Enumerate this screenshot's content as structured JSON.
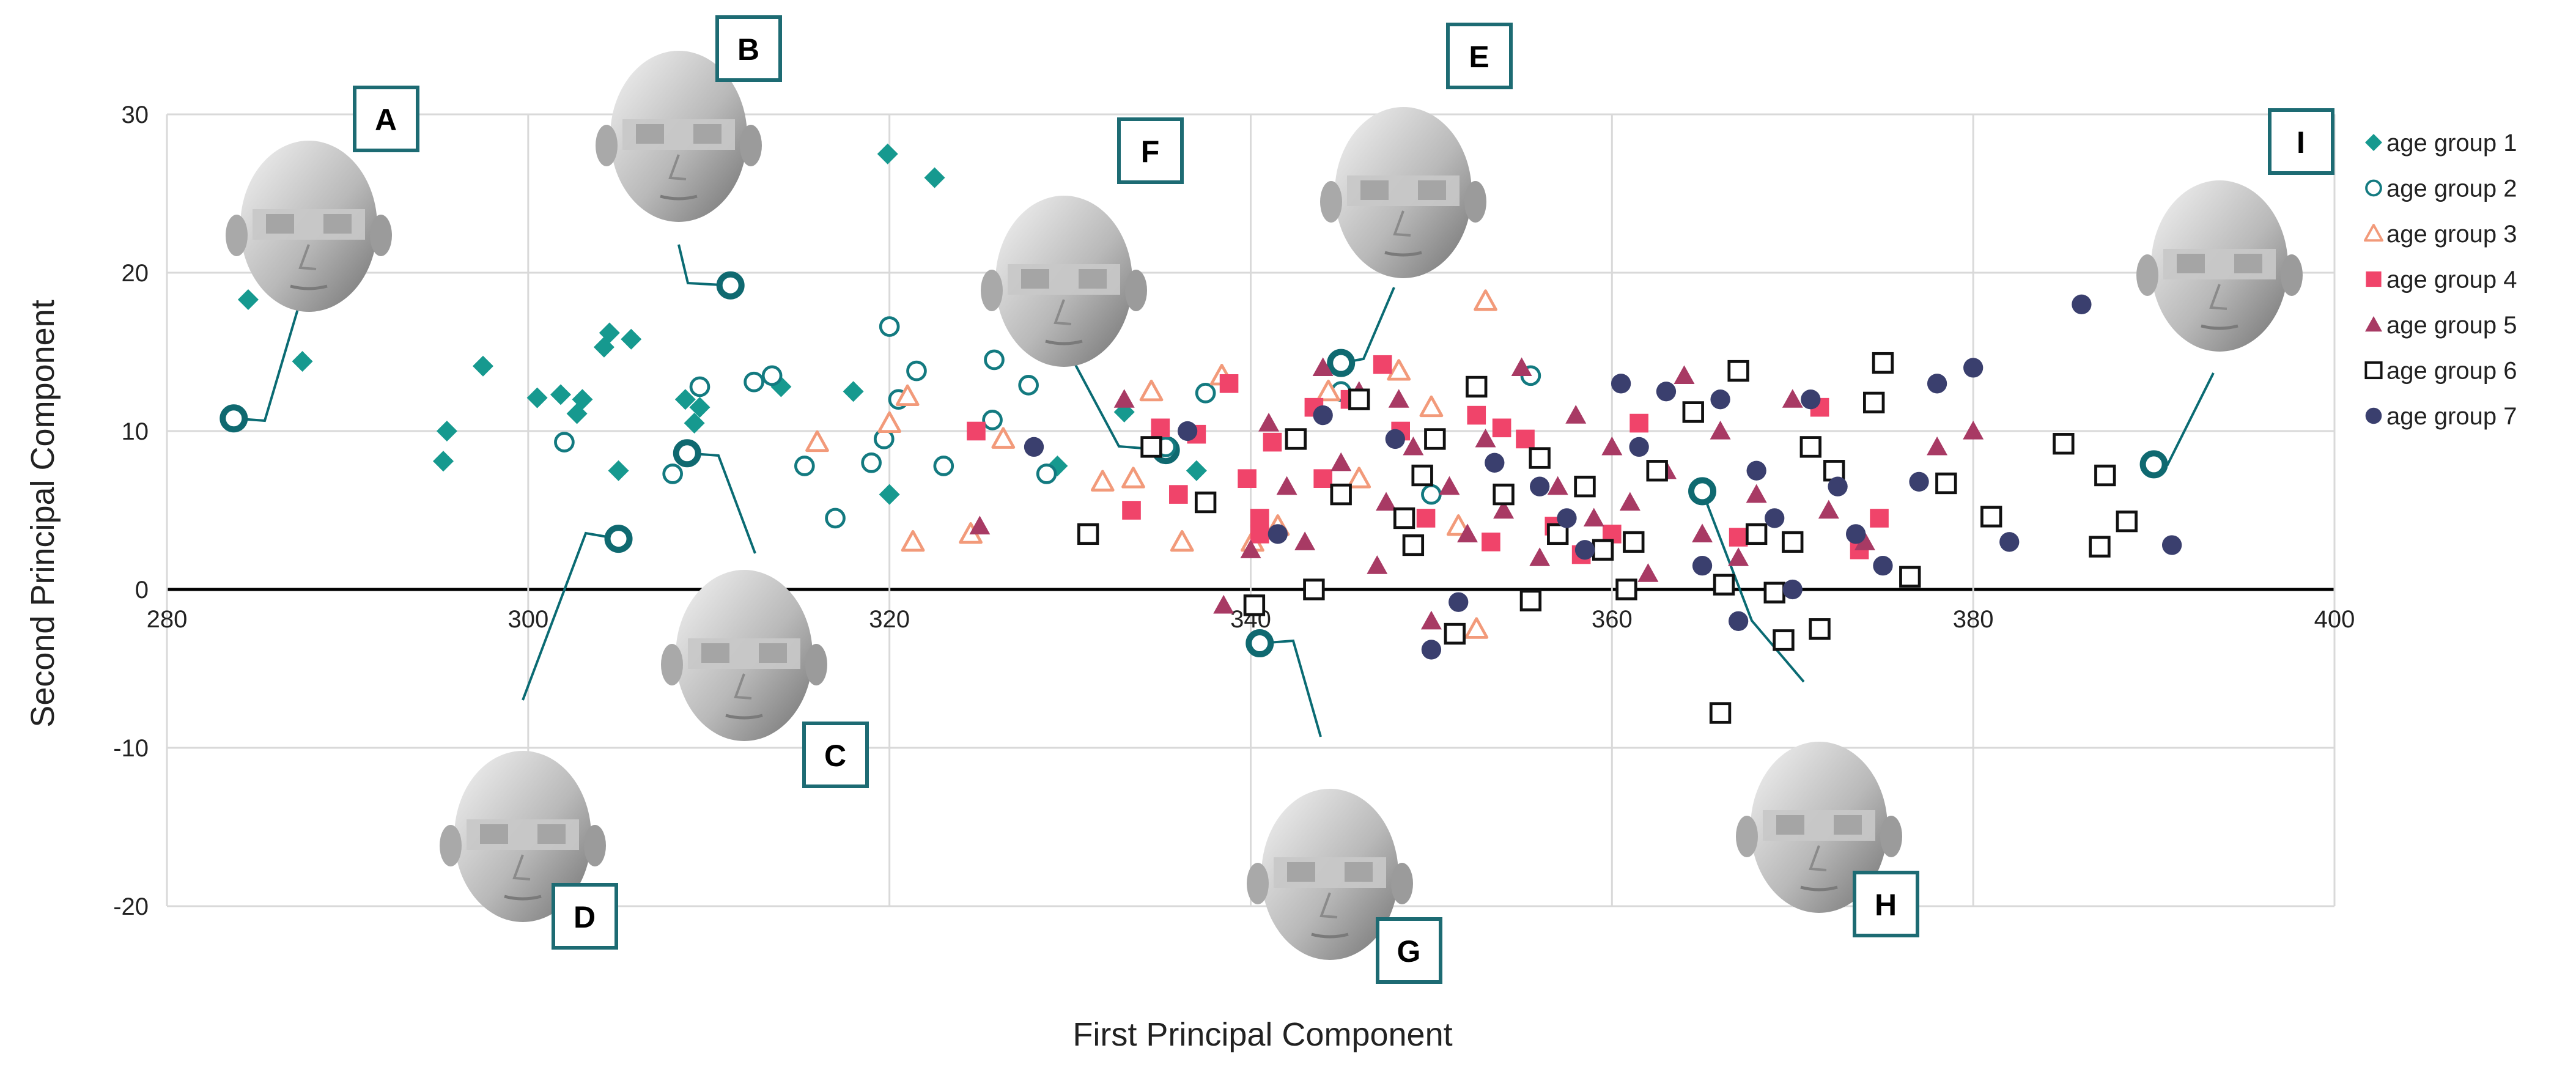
{
  "chart_data": {
    "type": "scatter",
    "xlabel": "First Principal Component",
    "ylabel": "Second Principal Component",
    "xlim": [
      280,
      400
    ],
    "ylim": [
      -20,
      30
    ],
    "xticks": [
      280,
      300,
      320,
      340,
      360,
      380,
      400
    ],
    "yticks": [
      -20,
      -10,
      0,
      10,
      20,
      30
    ],
    "grid": true,
    "legend_position": "right",
    "series": [
      {
        "name": "age group 1",
        "marker": "diamond",
        "color": "#16998f",
        "x": [
          284.5,
          287.5,
          295.3,
          295.5,
          297.5,
          300.5,
          301.8,
          302.7,
          303.0,
          304.2,
          304.5,
          305.0,
          305.7,
          308.7,
          309.2,
          309.5,
          314,
          318,
          319.9,
          320.0,
          322.5,
          329.3,
          333,
          337
        ],
        "y": [
          18.3,
          14.4,
          8.1,
          10.0,
          14.1,
          12.1,
          12.3,
          11.1,
          12.0,
          15.3,
          16.2,
          7.5,
          15.8,
          12.0,
          10.5,
          11.5,
          12.8,
          12.5,
          27.5,
          6.0,
          26.0,
          7.8,
          11.2,
          7.5
        ]
      },
      {
        "name": "age group 2",
        "marker": "circle-open",
        "color": "#137a80",
        "x": [
          302,
          308,
          309.5,
          312.5,
          313.5,
          315.3,
          317,
          319,
          319.7,
          320,
          320.5,
          321.5,
          323,
          325.7,
          325.8,
          327.7,
          328.7,
          335.3,
          337.5,
          345,
          350,
          355.5
        ],
        "y": [
          9.3,
          7.3,
          12.8,
          13.1,
          13.5,
          7.8,
          4.5,
          8.0,
          9.5,
          16.6,
          12.0,
          13.8,
          7.8,
          10.7,
          14.5,
          12.9,
          7.3,
          9.0,
          12.4,
          12.5,
          6.0,
          13.5
        ]
      },
      {
        "name": "age group 3",
        "marker": "triangle-open",
        "color": "#f29a7a",
        "x": [
          316,
          320,
          321,
          321.3,
          324.5,
          326.3,
          331.8,
          333.5,
          334.5,
          336.2,
          338.4,
          340.1,
          341.5,
          344.3,
          348.2,
          350,
          351.5,
          352.5,
          353,
          346
        ],
        "y": [
          9.3,
          10.5,
          12.2,
          3.0,
          3.5,
          9.5,
          6.8,
          7.0,
          12.5,
          3.0,
          13.5,
          3.0,
          4.0,
          12.5,
          13.8,
          11.5,
          4.0,
          -2.5,
          18.2,
          7.0
        ]
      },
      {
        "name": "age group 4",
        "marker": "square",
        "color": "#f0446a",
        "x": [
          324.8,
          333.4,
          335.0,
          336.0,
          337.0,
          338.8,
          339.8,
          340.5,
          340.5,
          341.2,
          343.5,
          344.0,
          345.5,
          347.3,
          348.3,
          349.7,
          352.5,
          353.3,
          353.9,
          355.2,
          356.8,
          358.3,
          360.0,
          361.5,
          367.0,
          371.5,
          373.7,
          374.8
        ],
        "y": [
          10.0,
          5.0,
          10.2,
          6.0,
          9.8,
          13.0,
          7.0,
          4.5,
          3.5,
          9.3,
          11.5,
          7.0,
          12.0,
          14.2,
          10.0,
          4.5,
          11.0,
          3.0,
          10.2,
          9.5,
          4.0,
          2.2,
          3.5,
          10.5,
          3.3,
          11.5,
          2.5,
          4.5
        ]
      },
      {
        "name": "age group 5",
        "marker": "triangle",
        "color": "#a83a64",
        "x": [
          325,
          333,
          338.5,
          340,
          341,
          342,
          343,
          344,
          345,
          346,
          347,
          347.5,
          348.2,
          349,
          350,
          351,
          352,
          353,
          354,
          355,
          356,
          357,
          358,
          359,
          360,
          361,
          362,
          363,
          364,
          365,
          366,
          367,
          368,
          370,
          372,
          374,
          378,
          380
        ],
        "y": [
          4.0,
          12.0,
          -1.0,
          2.5,
          10.5,
          6.5,
          3.0,
          14.0,
          8.0,
          12.5,
          1.5,
          5.5,
          12.0,
          9.0,
          -2.0,
          6.5,
          3.5,
          9.5,
          5.0,
          14.0,
          2.0,
          6.5,
          11.0,
          4.5,
          9.0,
          5.5,
          1.0,
          7.5,
          13.5,
          3.5,
          10.0,
          2.0,
          6.0,
          12.0,
          5.0,
          3.0,
          9.0,
          10.0
        ]
      },
      {
        "name": "age group 6",
        "marker": "square-open",
        "color": "#111111",
        "x": [
          331,
          334.5,
          337.5,
          340.2,
          342.5,
          343.5,
          345,
          346,
          348.5,
          349,
          349.5,
          350.2,
          351.3,
          352.5,
          354,
          355.5,
          356,
          357,
          358.5,
          359.5,
          360.8,
          361.2,
          362.5,
          364.5,
          366,
          366.2,
          367,
          368,
          369,
          369.5,
          370,
          371,
          371.5,
          372.3,
          374.5,
          375,
          376.5,
          378.5,
          381,
          385,
          387,
          387.3,
          388.5
        ],
        "y": [
          3.5,
          9.0,
          5.5,
          -1.0,
          9.5,
          0,
          6.0,
          12.0,
          4.5,
          2.8,
          7.2,
          9.5,
          -2.8,
          12.8,
          6.0,
          -0.7,
          8.3,
          3.5,
          6.5,
          2.5,
          0,
          3.0,
          7.5,
          11.2,
          -7.8,
          0.3,
          13.8,
          3.5,
          -0.2,
          -3.2,
          3.0,
          9.0,
          -2.5,
          7.5,
          11.8,
          14.3,
          0.8,
          6.7,
          4.6,
          9.2,
          2.7,
          7.2,
          4.3
        ]
      },
      {
        "name": "age group 7",
        "marker": "circle",
        "color": "#3a3f6e",
        "x": [
          328,
          336.5,
          341.5,
          344,
          348,
          350,
          351.5,
          353.5,
          356,
          357.5,
          358.5,
          360.5,
          361.5,
          363,
          365,
          366,
          367,
          368,
          369,
          370,
          371,
          372.5,
          373.5,
          375,
          377,
          378,
          380,
          382,
          386,
          391
        ],
        "y": [
          9.0,
          10.0,
          3.5,
          11.0,
          9.5,
          -3.8,
          -0.8,
          8.0,
          6.5,
          4.5,
          2.5,
          13.0,
          9.0,
          12.5,
          1.5,
          12.0,
          -2.0,
          7.5,
          4.5,
          0,
          12.0,
          6.5,
          3.5,
          1.5,
          6.8,
          13.0,
          14.0,
          3.0,
          18.0,
          2.8
        ]
      }
    ],
    "callouts": [
      {
        "label": "A",
        "x": 283.7,
        "y": 10.8
      },
      {
        "label": "B",
        "x": 311.2,
        "y": 19.2
      },
      {
        "label": "C",
        "x": 308.8,
        "y": 8.6
      },
      {
        "label": "D",
        "x": 305.0,
        "y": 3.2
      },
      {
        "label": "E",
        "x": 345.0,
        "y": 14.3
      },
      {
        "label": "F",
        "x": 335.3,
        "y": 8.8
      },
      {
        "label": "G",
        "x": 340.5,
        "y": -3.4
      },
      {
        "label": "H",
        "x": 365.0,
        "y": 6.2
      },
      {
        "label": "I",
        "x": 390.0,
        "y": 7.9
      }
    ]
  }
}
